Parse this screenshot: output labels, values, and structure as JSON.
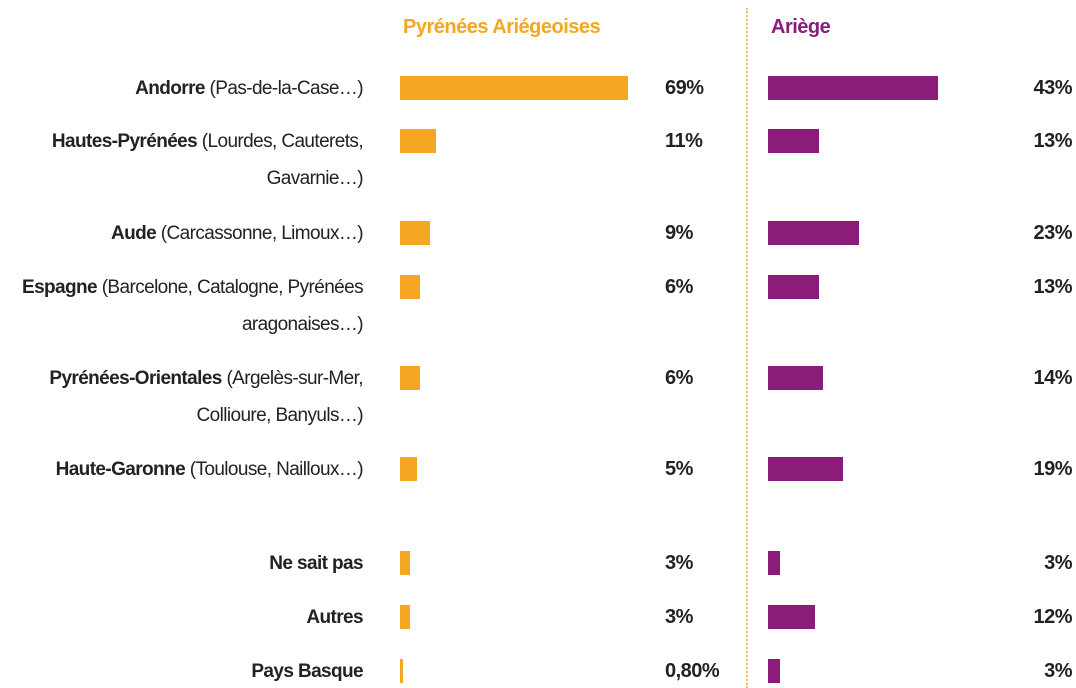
{
  "chart_data": {
    "type": "bar",
    "categories": [
      "Andorre",
      "Hautes-Pyrénées",
      "Aude",
      "Espagne",
      "Pyrénées-Orientales",
      "Haute-Garonne",
      "Ne sait pas",
      "Autres",
      "Pays Basque"
    ],
    "category_details": [
      "(Pas-de-la-Case…)",
      "(Lourdes, Cauterets, Gavarnie…)",
      "(Carcassonne, Limoux…)",
      "(Barcelone, Catalogne, Pyrénées aragonaises…)",
      "(Argelès-sur-Mer, Collioure, Banyuls…)",
      "(Toulouse, Nailloux…)",
      null,
      null,
      null
    ],
    "series": [
      {
        "name": "Pyrénées Ariégeoises",
        "color": "#f5a623",
        "values": [
          69,
          11,
          9,
          6,
          6,
          5,
          3,
          3,
          0.8
        ],
        "value_labels": [
          "69%",
          "11%",
          "9%",
          "6%",
          "6%",
          "5%",
          "3%",
          "3%",
          "0,80%"
        ]
      },
      {
        "name": "Ariège",
        "color": "#8b1c7a",
        "values": [
          43,
          13,
          23,
          13,
          14,
          19,
          3,
          12,
          3
        ],
        "value_labels": [
          "43%",
          "13%",
          "23%",
          "13%",
          "14%",
          "19%",
          "3%",
          "12%",
          "3%"
        ]
      }
    ]
  }
}
